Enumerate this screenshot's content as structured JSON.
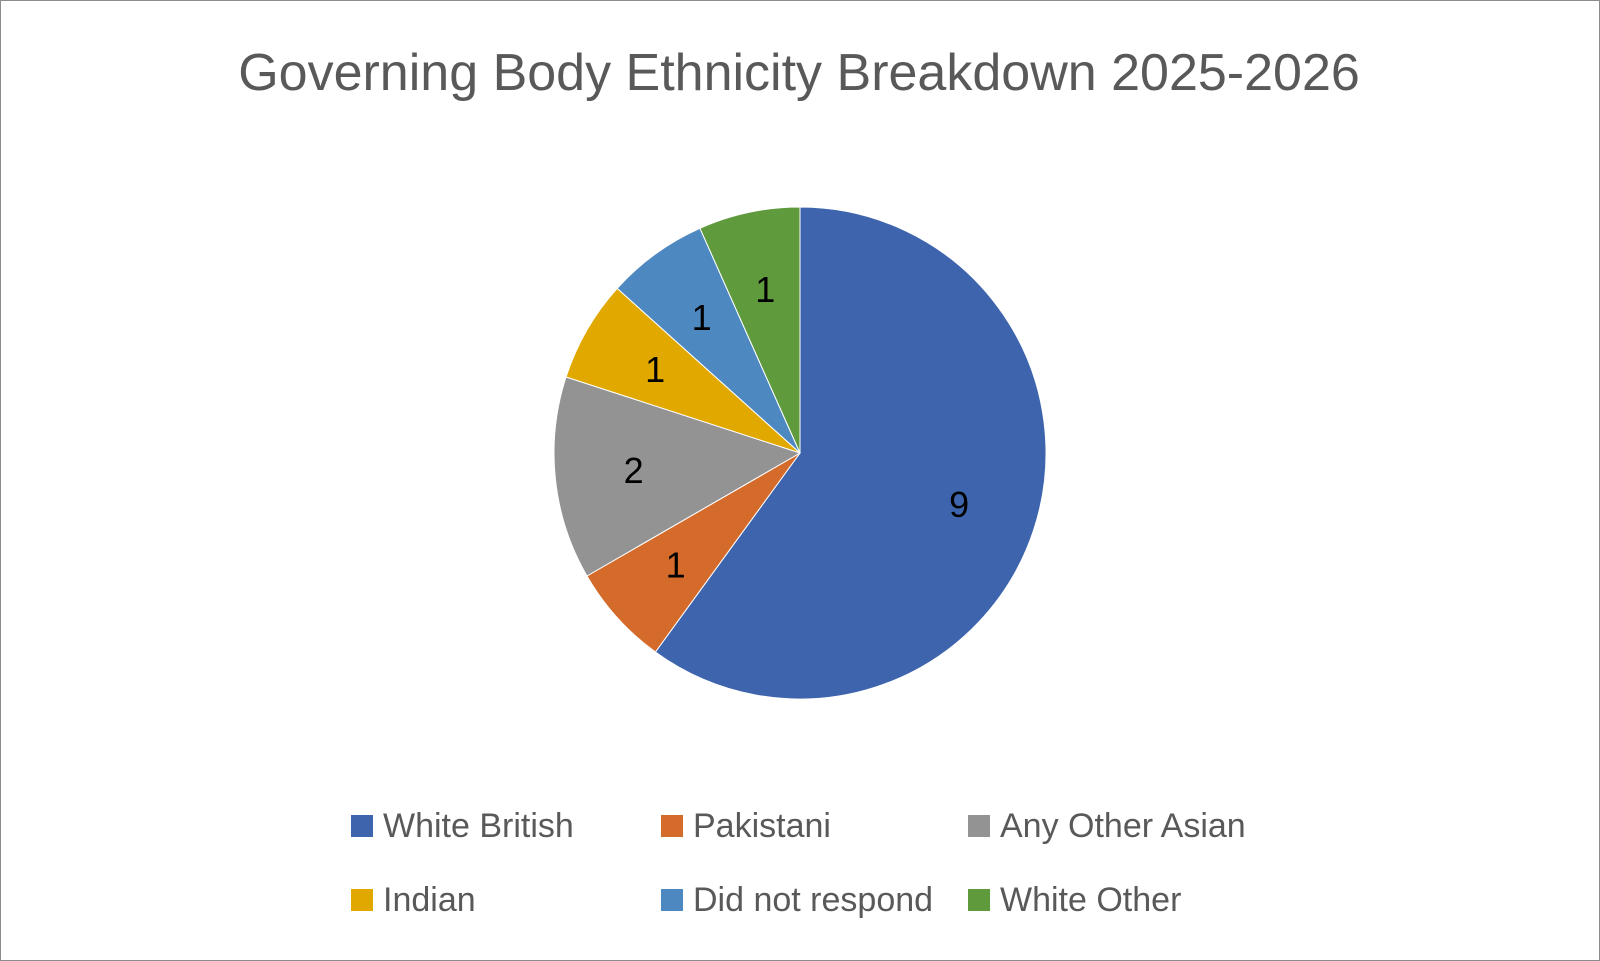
{
  "chart_data": {
    "type": "pie",
    "title": "Governing Body Ethnicity Breakdown 2025-2026",
    "categories": [
      "White British",
      "Pakistani",
      "Any Other Asian",
      "Indian",
      "Did not respond",
      "White Other"
    ],
    "values": [
      9,
      1,
      2,
      1,
      1,
      1
    ],
    "data_labels": [
      "9",
      "1",
      "2",
      "1",
      "1",
      "1"
    ],
    "colors": [
      "#3D64AD",
      "#D46B2A",
      "#939393",
      "#E1A900",
      "#4E88C0",
      "#5F9A3D"
    ],
    "legend": "bottom",
    "start_angle": "12 o'clock",
    "direction": "clockwise"
  }
}
